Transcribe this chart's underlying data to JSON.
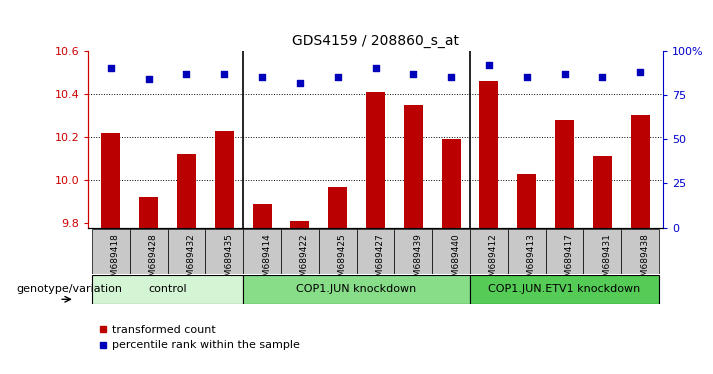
{
  "title": "GDS4159 / 208860_s_at",
  "samples": [
    "GSM689418",
    "GSM689428",
    "GSM689432",
    "GSM689435",
    "GSM689414",
    "GSM689422",
    "GSM689425",
    "GSM689427",
    "GSM689439",
    "GSM689440",
    "GSM689412",
    "GSM689413",
    "GSM689417",
    "GSM689431",
    "GSM689438"
  ],
  "bar_values": [
    10.22,
    9.92,
    10.12,
    10.23,
    9.89,
    9.81,
    9.97,
    10.41,
    10.35,
    10.19,
    10.46,
    10.03,
    10.28,
    10.11,
    10.3
  ],
  "dot_values": [
    90,
    84,
    87,
    87,
    85,
    82,
    85,
    90,
    87,
    85,
    92,
    85,
    87,
    85,
    88
  ],
  "ylim": [
    9.78,
    10.6
  ],
  "y2lim": [
    0,
    100
  ],
  "yticks": [
    9.8,
    10.0,
    10.2,
    10.4,
    10.6
  ],
  "y2ticks": [
    0,
    25,
    50,
    75,
    100
  ],
  "y2ticklabels": [
    "0",
    "25",
    "50",
    "75",
    "100%"
  ],
  "bar_color": "#bb0000",
  "dot_color": "#0000bb",
  "groups": [
    {
      "label": "control",
      "start": 0,
      "end": 3,
      "color": "#d4f5d4"
    },
    {
      "label": "COP1.JUN knockdown",
      "start": 4,
      "end": 9,
      "color": "#88dd88"
    },
    {
      "label": "COP1.JUN.ETV1 knockdown",
      "start": 10,
      "end": 14,
      "color": "#55cc55"
    }
  ],
  "legend_bar_label": "transformed count",
  "legend_dot_label": "percentile rank within the sample",
  "xlabel_left": "genotype/variation",
  "tick_color_left": "#cc0000",
  "tick_color_right": "#0000cc",
  "bar_width": 0.5,
  "grid_yticks": [
    10.0,
    10.2,
    10.4
  ],
  "xticklabel_bg": "#c8c8c8"
}
